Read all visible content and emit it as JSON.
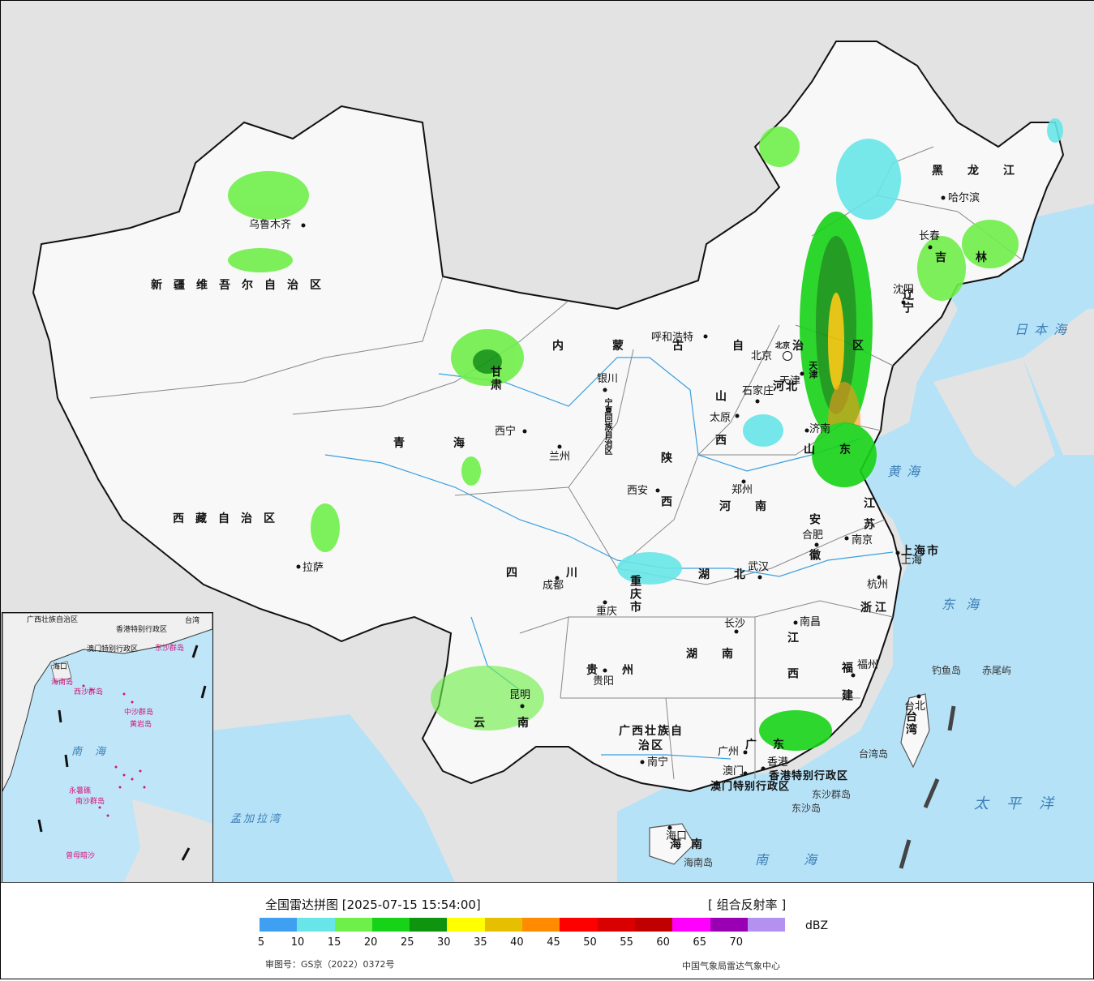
{
  "map": {
    "provinces": [
      {
        "name": "新疆维吾尔自治区",
        "kind": "region"
      },
      {
        "name": "西藏自治区",
        "kind": "region"
      },
      {
        "name": "青海",
        "kind": "province"
      },
      {
        "name": "甘肃",
        "kind": "province"
      },
      {
        "name": "内蒙古自治区",
        "kind": "region"
      },
      {
        "name": "黑龙江",
        "kind": "province"
      },
      {
        "name": "吉林",
        "kind": "province"
      },
      {
        "name": "辽宁",
        "kind": "province"
      },
      {
        "name": "河北",
        "kind": "province"
      },
      {
        "name": "山西",
        "kind": "province"
      },
      {
        "name": "山东",
        "kind": "province"
      },
      {
        "name": "河南",
        "kind": "province"
      },
      {
        "name": "陕西",
        "kind": "province"
      },
      {
        "name": "四川",
        "kind": "province"
      },
      {
        "name": "湖北",
        "kind": "province"
      },
      {
        "name": "湖南",
        "kind": "province"
      },
      {
        "name": "江西",
        "kind": "province"
      },
      {
        "name": "安徽",
        "kind": "province"
      },
      {
        "name": "江苏",
        "kind": "province"
      },
      {
        "name": "浙江",
        "kind": "province"
      },
      {
        "name": "福建",
        "kind": "province"
      },
      {
        "name": "广东",
        "kind": "province"
      },
      {
        "name": "广西壮族自治区",
        "kind": "region"
      },
      {
        "name": "贵州",
        "kind": "province"
      },
      {
        "name": "云南",
        "kind": "province"
      },
      {
        "name": "海南",
        "kind": "province"
      },
      {
        "name": "台湾",
        "kind": "province"
      },
      {
        "name": "宁夏回族自治区",
        "kind": "region"
      },
      {
        "name": "上海市",
        "kind": "city"
      },
      {
        "name": "重庆市",
        "kind": "city"
      },
      {
        "name": "天津",
        "kind": "city"
      },
      {
        "name": "北京",
        "kind": "city"
      },
      {
        "name": "香港特别行政区",
        "kind": "sar"
      },
      {
        "name": "澳门特别行政区",
        "kind": "sar"
      }
    ],
    "cities": [
      "乌鲁木齐",
      "拉萨",
      "西宁",
      "兰州",
      "银川",
      "呼和浩特",
      "北京",
      "天津",
      "石家庄",
      "太原",
      "济南",
      "郑州",
      "西安",
      "成都",
      "重庆",
      "武汉",
      "合肥",
      "南京",
      "上海",
      "杭州",
      "长沙",
      "南昌",
      "福州",
      "贵阳",
      "昆明",
      "南宁",
      "广州",
      "香港",
      "澳门",
      "海口",
      "台北",
      "沈阳",
      "长春",
      "哈尔滨"
    ],
    "seas": [
      "日本海",
      "黄海",
      "东海",
      "太平洋",
      "南海",
      "孟加拉湾"
    ],
    "islands": [
      "钓鱼岛",
      "赤尾屿",
      "台湾岛",
      "东沙群岛",
      "东沙岛",
      "海南岛"
    ],
    "inset_labels": [
      "广西壮族自治区",
      "香港特别行政区",
      "澳门特别行政区",
      "台湾",
      "海口",
      "海南岛",
      "西沙群岛",
      "中沙群岛",
      "黄岩岛",
      "南沙群岛",
      "永暑礁",
      "曾母暗沙",
      "东沙群岛",
      "南海"
    ]
  },
  "legend": {
    "title": "全国雷达拼图 [2025-07-15 15:54:00]",
    "product": "[ 组合反射率 ]",
    "unit": "dBZ",
    "colors": [
      "#3f9ff0",
      "#67e5e8",
      "#6fef4a",
      "#17d317",
      "#0f940f",
      "#ffff00",
      "#e6c000",
      "#ff8c00",
      "#ff0000",
      "#d80000",
      "#c00000",
      "#ff00ff",
      "#9900b3",
      "#b490f0"
    ],
    "ticks": [
      "5",
      "10",
      "15",
      "20",
      "25",
      "30",
      "35",
      "40",
      "45",
      "50",
      "55",
      "60",
      "65",
      "70"
    ],
    "approval": "审图号：GS京（2022）0372号",
    "source": "中国气象局雷达气象中心"
  }
}
